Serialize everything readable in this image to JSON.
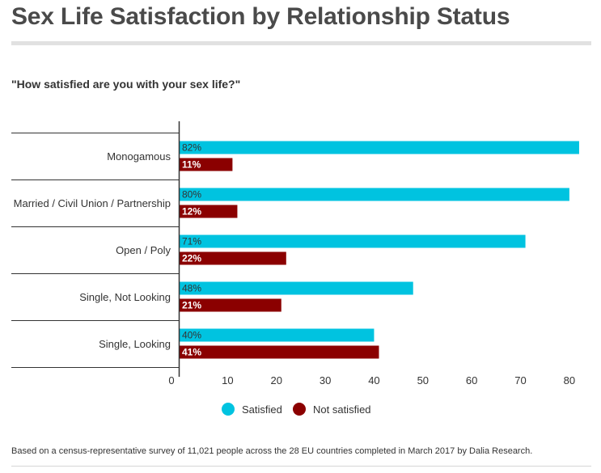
{
  "header": {
    "title": "Sex Life Satisfaction by Relationship Status",
    "subtitle": "\"How satisfied are you with your sex life?\""
  },
  "footer": {
    "note": "Based on a census-representative survey of 11,021 people across the 28 EU countries completed in March 2017 by Dalia Research."
  },
  "chart_data": {
    "type": "bar",
    "orientation": "horizontal",
    "title": "Sex Life Satisfaction by Relationship Status",
    "subtitle": "\"How satisfied are you with your sex life?\"",
    "xlabel": "",
    "ylabel": "",
    "categories": [
      "Monogamous",
      "Married / Civil Union / Partnership",
      "Open / Poly",
      "Single, Not Looking",
      "Single, Looking"
    ],
    "series": [
      {
        "name": "Satisfied",
        "color": "#00c3e0",
        "values": [
          82,
          80,
          71,
          48,
          40
        ],
        "labels": [
          "82%",
          "80%",
          "71%",
          "48%",
          "40%"
        ]
      },
      {
        "name": "Not satisfied",
        "color": "#8b0000",
        "values": [
          11,
          12,
          22,
          21,
          41
        ],
        "labels": [
          "11%",
          "12%",
          "22%",
          "21%",
          "41%"
        ]
      }
    ],
    "xlim": [
      0,
      83
    ],
    "xticks": [
      "0",
      "10",
      "20",
      "30",
      "40",
      "50",
      "60",
      "70",
      "80"
    ],
    "grid": false,
    "legend_position": "bottom-center"
  }
}
